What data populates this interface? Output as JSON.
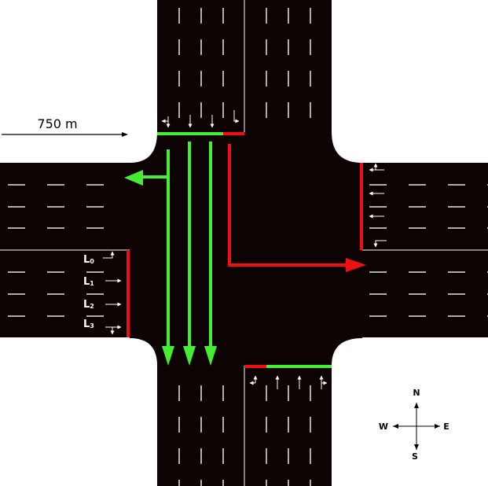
{
  "scale": {
    "label": "750 m"
  },
  "lane_labels": [
    {
      "main": "L",
      "sub": "0"
    },
    {
      "main": "L",
      "sub": "1"
    },
    {
      "main": "L",
      "sub": "2"
    },
    {
      "main": "L",
      "sub": "3"
    }
  ],
  "compass": {
    "north": "N",
    "south": "S",
    "east": "E",
    "west": "W"
  },
  "colors": {
    "road": "#0d0303",
    "lane_marking": "#e6e6e6",
    "signal_green": "#44ee33",
    "signal_red": "#ee1111",
    "background": "#ffffff"
  },
  "movements": [
    {
      "name": "north-approach-left-turn",
      "signal": "green"
    },
    {
      "name": "north-approach-through",
      "signal": "green"
    },
    {
      "name": "north-approach-right-turn",
      "signal": "red"
    }
  ]
}
